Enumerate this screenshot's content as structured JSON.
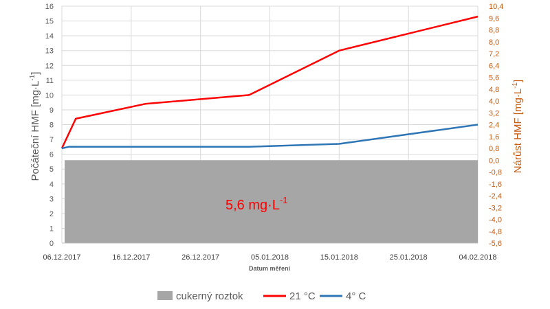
{
  "chart_data": {
    "type": "line",
    "xlabel": "Datum měření",
    "ylabel_left": "Počáteční HMF [mg·L",
    "ylabel_left_sup": "-1",
    "ylabel_left_end": "]",
    "ylabel_right": "Nárůst HMF [mg·L",
    "ylabel_right_sup": "-1",
    "ylabel_right_end": "]",
    "x_ticks": [
      "06.12.2017",
      "16.12.2017",
      "26.12.2017",
      "05.01.2018",
      "15.01.2018",
      "25.01.2018",
      "04.02.2018"
    ],
    "x_range": [
      "2017-12-06",
      "2018-02-04"
    ],
    "y_left_range": [
      0,
      16
    ],
    "y_left_ticks": [
      "0",
      "1",
      "2",
      "3",
      "4",
      "5",
      "6",
      "7",
      "8",
      "9",
      "10",
      "11",
      "12",
      "13",
      "14",
      "15",
      "16"
    ],
    "y_right_range": [
      -5.6,
      10.4
    ],
    "y_right_ticks": [
      "-5,6",
      "-4,8",
      "-4,0",
      "-3,2",
      "-2,4",
      "-1,6",
      "-0,8",
      "0,0",
      "0,8",
      "1,6",
      "2,4",
      "3,2",
      "4,0",
      "4,8",
      "5,6",
      "6,4",
      "7,2",
      "8,0",
      "8,8",
      "9,6",
      "10,4"
    ],
    "grid": true,
    "legend_placement": "bottom",
    "area": {
      "name": "cukerný roztok",
      "value": 5.6,
      "x_start": "2017-12-06",
      "x_end": "2018-02-04",
      "color": "#a6a6a6",
      "label": "5,6 mg·L",
      "label_sup": "-1"
    },
    "series": [
      {
        "name": "21 °C",
        "color": "#ff0000",
        "axis": "left",
        "points": [
          {
            "x": "2017-12-06",
            "y": 6.4
          },
          {
            "x": "2017-12-08",
            "y": 8.4
          },
          {
            "x": "2017-12-18",
            "y": 9.4
          },
          {
            "x": "2018-01-02",
            "y": 10.0
          },
          {
            "x": "2018-01-15",
            "y": 13.0
          },
          {
            "x": "2018-02-04",
            "y": 15.3
          }
        ]
      },
      {
        "name": "4° C",
        "color": "#2e75b6",
        "axis": "left",
        "points": [
          {
            "x": "2017-12-06",
            "y": 6.4
          },
          {
            "x": "2017-12-07",
            "y": 6.5
          },
          {
            "x": "2017-12-18",
            "y": 6.5
          },
          {
            "x": "2018-01-02",
            "y": 6.5
          },
          {
            "x": "2018-01-15",
            "y": 6.7
          },
          {
            "x": "2018-02-04",
            "y": 8.0
          }
        ]
      }
    ]
  }
}
